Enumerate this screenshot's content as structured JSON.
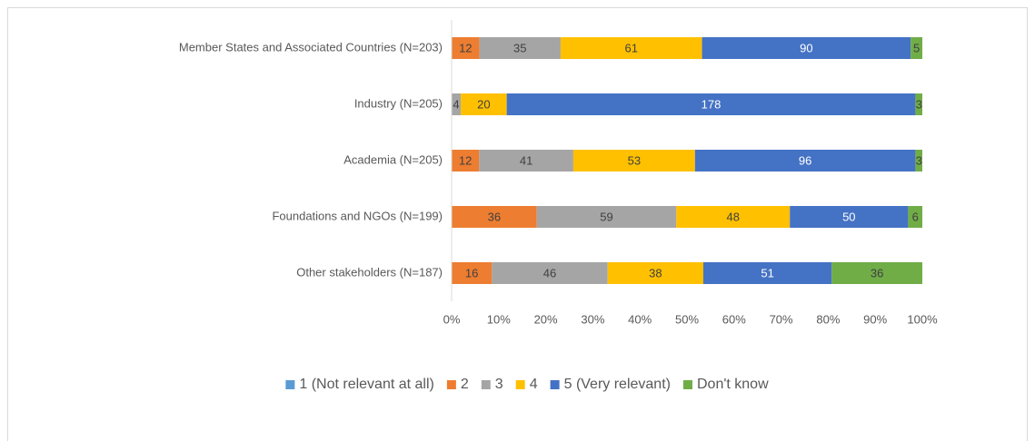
{
  "chart_data": {
    "type": "stacked_bar_percent",
    "orientation": "horizontal",
    "categories": [
      "Member States and Associated Countries (N=203)",
      "Industry (N=205)",
      "Academia (N=205)",
      "Foundations and NGOs (N=199)",
      "Other stakeholders (N=187)"
    ],
    "series": [
      {
        "name": "1 (Not relevant at all)",
        "color": "#5b9bd5",
        "values": [
          0,
          0,
          0,
          0,
          0
        ]
      },
      {
        "name": "2",
        "color": "#ed7d31",
        "values": [
          12,
          0,
          12,
          36,
          16
        ]
      },
      {
        "name": "3",
        "color": "#a5a5a5",
        "values": [
          35,
          4,
          41,
          59,
          46
        ]
      },
      {
        "name": "4",
        "color": "#ffc000",
        "values": [
          61,
          20,
          53,
          48,
          38
        ]
      },
      {
        "name": "5 (Very relevant)",
        "color": "#4472c4",
        "values": [
          90,
          178,
          96,
          50,
          51
        ]
      },
      {
        "name": "Don't know",
        "color": "#70ad47",
        "values": [
          5,
          3,
          3,
          6,
          36
        ]
      }
    ],
    "xlim": [
      0,
      100
    ],
    "xticks": [
      {
        "value": 0,
        "label": "0%"
      },
      {
        "value": 10,
        "label": "10%"
      },
      {
        "value": 20,
        "label": "20%"
      },
      {
        "value": 30,
        "label": "30%"
      },
      {
        "value": 40,
        "label": "40%"
      },
      {
        "value": 50,
        "label": "50%"
      },
      {
        "value": 60,
        "label": "60%"
      },
      {
        "value": 70,
        "label": "70%"
      },
      {
        "value": 80,
        "label": "80%"
      },
      {
        "value": 90,
        "label": "90%"
      },
      {
        "value": 100,
        "label": "100%"
      }
    ],
    "grid": false,
    "legend": "bottom"
  }
}
